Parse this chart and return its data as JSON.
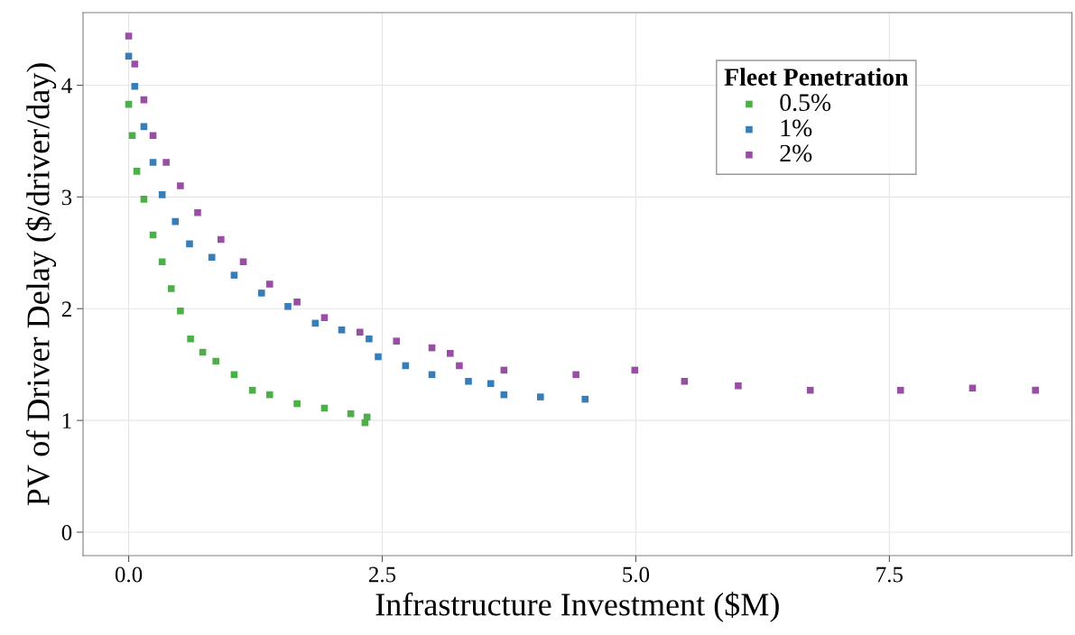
{
  "chart_data": {
    "type": "scatter",
    "xlabel": "Infrastructure Investment ($M)",
    "ylabel": "PV of Driver Delay ($/driver/day)",
    "legend_title": "Fleet Penetration",
    "xlim": [
      -0.45,
      9.3
    ],
    "ylim": [
      -0.21,
      4.65
    ],
    "xticks": [
      {
        "value": 0,
        "label": "0.0"
      },
      2.5,
      {
        "value": 5,
        "label": "5.0"
      },
      7.5
    ],
    "yticks": [
      0,
      1,
      2,
      3,
      4
    ],
    "grid": true,
    "legend": "top right",
    "marker": "square",
    "series": [
      {
        "name": "0.5%",
        "color": "#4daf4a",
        "x": [
          0,
          0.035,
          0.08,
          0.15,
          0.24,
          0.33,
          0.42,
          0.51,
          0.61,
          0.73,
          0.86,
          1.04,
          1.22,
          1.39,
          1.66,
          1.93,
          2.19,
          2.33,
          2.35
        ],
        "values": [
          3.83,
          3.55,
          3.23,
          2.98,
          2.66,
          2.42,
          2.18,
          1.98,
          1.73,
          1.61,
          1.53,
          1.41,
          1.27,
          1.23,
          1.15,
          1.11,
          1.06,
          0.98,
          1.03
        ]
      },
      {
        "name": "1%",
        "color": "#377eb8",
        "x": [
          0,
          0.06,
          0.15,
          0.24,
          0.33,
          0.46,
          0.6,
          0.82,
          1.04,
          1.31,
          1.57,
          1.84,
          2.1,
          2.37,
          2.46,
          2.73,
          2.99,
          3.35,
          3.57,
          3.7,
          4.06,
          4.5
        ],
        "values": [
          4.26,
          3.99,
          3.63,
          3.31,
          3.02,
          2.78,
          2.58,
          2.46,
          2.3,
          2.14,
          2.02,
          1.87,
          1.81,
          1.73,
          1.57,
          1.49,
          1.41,
          1.35,
          1.33,
          1.23,
          1.21,
          1.19
        ]
      },
      {
        "name": "2%",
        "color": "#984ea3",
        "x": [
          0,
          0.06,
          0.15,
          0.24,
          0.37,
          0.51,
          0.68,
          0.91,
          1.13,
          1.39,
          1.66,
          1.93,
          2.28,
          2.64,
          2.99,
          3.17,
          3.26,
          3.7,
          4.41,
          4.99,
          5.48,
          6.01,
          6.72,
          7.61,
          8.32,
          8.94
        ],
        "values": [
          4.44,
          4.19,
          3.87,
          3.55,
          3.31,
          3.1,
          2.86,
          2.62,
          2.42,
          2.22,
          2.06,
          1.92,
          1.79,
          1.71,
          1.65,
          1.6,
          1.49,
          1.45,
          1.41,
          1.45,
          1.35,
          1.31,
          1.27,
          1.27,
          1.29,
          1.27
        ]
      }
    ]
  }
}
